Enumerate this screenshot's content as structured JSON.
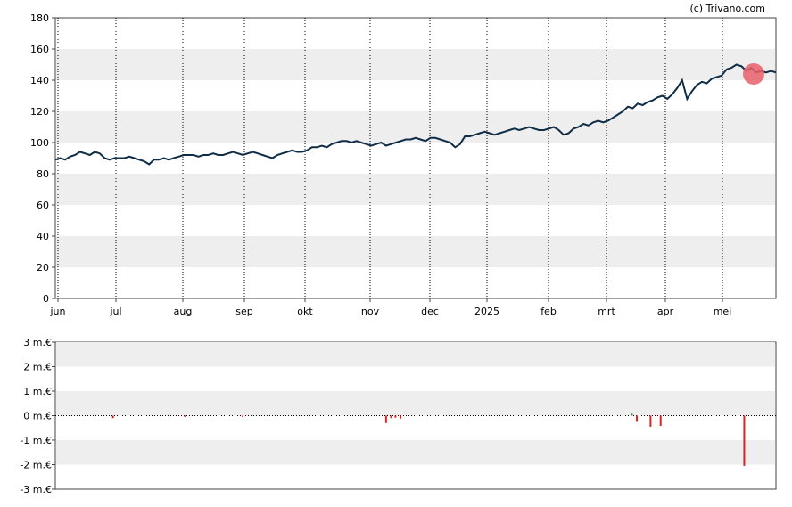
{
  "copyright": "(c) Trivano.com",
  "colors": {
    "price_line": "#0f2d47",
    "band": "#eeeeee",
    "marker": "#e8606a",
    "positive_bar": "#2e8b3a",
    "negative_bar": "#dd2222"
  },
  "chart_data": [
    {
      "type": "line",
      "title": "",
      "ylim": [
        0,
        180
      ],
      "y_ticks": [
        "0",
        "20",
        "40",
        "60",
        "80",
        "100",
        "120",
        "140",
        "160",
        "180"
      ],
      "x_month_labels": [
        "jun",
        "jul",
        "aug",
        "sep",
        "okt",
        "nov",
        "dec",
        "2025",
        "feb",
        "mrt",
        "apr",
        "mei"
      ],
      "grid": "vertical dotted month lines, alternating horizontal bands",
      "series": [
        {
          "values": [
            89,
            90,
            89,
            91,
            92,
            94,
            93,
            92,
            94,
            93,
            90,
            89,
            90,
            90,
            90,
            91,
            90,
            89,
            88,
            86,
            89,
            89,
            90,
            89,
            90,
            91,
            92,
            92,
            92,
            91,
            92,
            92,
            93,
            92,
            92,
            93,
            94,
            93,
            92,
            93,
            94,
            93,
            92,
            91,
            90,
            92,
            93,
            94,
            95,
            94,
            94,
            95,
            97,
            97,
            98,
            97,
            99,
            100,
            101,
            101,
            100,
            101,
            100,
            99,
            98,
            99,
            100,
            98,
            99,
            100,
            101,
            102,
            102,
            103,
            102,
            101,
            103,
            103,
            102,
            101,
            100,
            97,
            99,
            104,
            104,
            105,
            106,
            107,
            106,
            105,
            106,
            107,
            108,
            109,
            108,
            109,
            110,
            109,
            108,
            108,
            109,
            110,
            108,
            105,
            106,
            109,
            110,
            112,
            111,
            113,
            114,
            113,
            114,
            116,
            118,
            120,
            123,
            122,
            125,
            124,
            126,
            127,
            129,
            130,
            128,
            131,
            135,
            140,
            128,
            133,
            137,
            139,
            138,
            141,
            142,
            143,
            147,
            148,
            150,
            149,
            146,
            148,
            145,
            146,
            145,
            146,
            145
          ],
          "marker_value": 144
        }
      ]
    },
    {
      "type": "bar",
      "title": "",
      "ylim": [
        -3,
        3
      ],
      "y_ticks": [
        "3 m.€",
        "2 m.€",
        "1 m.€",
        "0 m.€",
        "-1 m.€",
        "-2 m.€",
        "-3 m.€"
      ],
      "bars": [
        {
          "x": 0.08,
          "value": -0.1
        },
        {
          "x": 0.18,
          "value": -0.05
        },
        {
          "x": 0.26,
          "value": -0.05
        },
        {
          "x": 0.459,
          "value": -0.3
        },
        {
          "x": 0.466,
          "value": -0.1
        },
        {
          "x": 0.472,
          "value": -0.08
        },
        {
          "x": 0.479,
          "value": -0.12
        },
        {
          "x": 0.8,
          "value": 0.08
        },
        {
          "x": 0.807,
          "value": -0.25
        },
        {
          "x": 0.826,
          "value": -0.45
        },
        {
          "x": 0.84,
          "value": -0.42
        },
        {
          "x": 0.956,
          "value": -2.05
        }
      ]
    }
  ]
}
